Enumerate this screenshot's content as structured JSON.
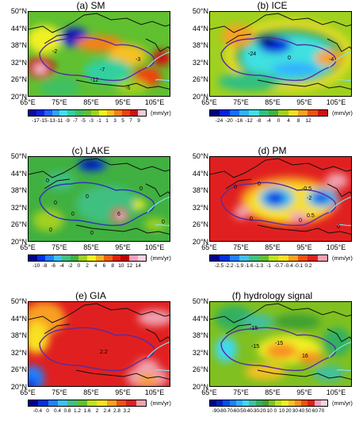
{
  "unit": "(mm/yr)",
  "lat_labels": [
    "50°N",
    "44°N",
    "38°N",
    "32°N",
    "26°N",
    "20°N"
  ],
  "lon_labels": [
    "65°E",
    "75°E",
    "85°E",
    "95°E",
    "105°E"
  ],
  "panels": [
    {
      "title": "(a) SM",
      "ticks": [
        "-17",
        "-15",
        "-13",
        "-11",
        "-9",
        "-7",
        "-5",
        "-3",
        "-1",
        "1",
        "3",
        "5",
        "7",
        "9"
      ],
      "colors": [
        "#0a0aa0",
        "#1020e0",
        "#2060ff",
        "#30a0ff",
        "#40e0f0",
        "#30d0a0",
        "#40c060",
        "#60c030",
        "#a0d020",
        "#f0f020",
        "#f8c020",
        "#f88018",
        "#f04010",
        "#d01010",
        "#f8c8d8"
      ],
      "contour_labels": [
        "-2",
        "-7",
        "-3",
        "-12",
        "-5"
      ]
    },
    {
      "title": "(b) ICE",
      "ticks": [
        "-24",
        "-20",
        "-16",
        "-12",
        "-8",
        "-4",
        "0",
        "4",
        "8",
        "12"
      ],
      "colors": [
        "#000080",
        "#0020e0",
        "#1070ff",
        "#30b0ff",
        "#40e0e0",
        "#30c080",
        "#40b040",
        "#a0d020",
        "#f0e020",
        "#f8a020",
        "#f05010",
        "#d01010"
      ],
      "contour_labels": [
        "-24",
        "0",
        "-4"
      ]
    },
    {
      "title": "(c) LAKE",
      "ticks": [
        "-10",
        "-8",
        "-6",
        "-4",
        "-2",
        "0",
        "2",
        "4",
        "6",
        "8",
        "10",
        "12",
        "14"
      ],
      "colors": [
        "#000090",
        "#0030e0",
        "#2080ff",
        "#40c0f0",
        "#40c080",
        "#40b040",
        "#a0d020",
        "#f0f020",
        "#f8b020",
        "#f06010",
        "#e02010",
        "#c00000",
        "#f0a0c0",
        "#f8d0e0"
      ],
      "contour_labels": [
        "0",
        "0",
        "0",
        "0",
        "0",
        "0",
        "0",
        "6",
        "0"
      ]
    },
    {
      "title": "(d) PM",
      "ticks": [
        "-2.5",
        "-2.2",
        "-1.9",
        "-1.6",
        "-1.3",
        "-1",
        "-0.7",
        "-0.4",
        "-0.1",
        "0.2"
      ],
      "colors": [
        "#000090",
        "#0030e0",
        "#2080ff",
        "#40c0f0",
        "#40c080",
        "#60c030",
        "#c0e020",
        "#f8e020",
        "#f8a020",
        "#f05010",
        "#e02020",
        "#f0a0b0"
      ],
      "contour_labels": [
        "0",
        "0",
        "-0.5",
        "-2",
        "0",
        "0",
        "0.5",
        "0"
      ]
    },
    {
      "title": "(e) GIA",
      "ticks": [
        "-0.4",
        "0",
        "0.4",
        "0.8",
        "1.2",
        "1.6",
        "2",
        "2.4",
        "2.8",
        "3.2"
      ],
      "colors": [
        "#000090",
        "#0030e0",
        "#2080ff",
        "#40c0f0",
        "#40c080",
        "#60c030",
        "#c0e020",
        "#f8e020",
        "#f8a020",
        "#f05010",
        "#e02020",
        "#f0a0b0"
      ],
      "contour_labels": [
        "2.2"
      ]
    },
    {
      "title": "(f) hydrology signal",
      "ticks": [
        "-90",
        "-80",
        "-70",
        "-60",
        "-50",
        "-40",
        "-30",
        "-20",
        "-10",
        "0",
        "10",
        "20",
        "30",
        "40",
        "50",
        "60",
        "70"
      ],
      "colors": [
        "#000090",
        "#0020c0",
        "#0050f0",
        "#2080ff",
        "#30b0ff",
        "#40d8f0",
        "#40c0a0",
        "#30b060",
        "#40a030",
        "#80c020",
        "#c0e020",
        "#f0f020",
        "#f8c020",
        "#f89020",
        "#f05010",
        "#e02010",
        "#f0a0c0",
        "#f8d0e0"
      ],
      "contour_labels": [
        "-15",
        "-15",
        "-15",
        "16"
      ]
    }
  ]
}
